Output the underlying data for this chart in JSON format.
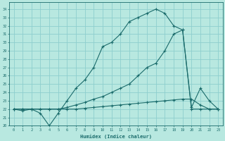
{
  "xlabel": "Humidex (Indice chaleur)",
  "bg_color": "#b8e8e0",
  "grid_color": "#8ecece",
  "line_color": "#1a6b6b",
  "xlim": [
    -0.5,
    23.5
  ],
  "ylim": [
    20,
    34.8
  ],
  "xticks": [
    0,
    1,
    2,
    3,
    4,
    5,
    6,
    7,
    8,
    9,
    10,
    11,
    12,
    13,
    14,
    15,
    16,
    17,
    18,
    19,
    20,
    21,
    22,
    23
  ],
  "yticks": [
    20,
    21,
    22,
    23,
    24,
    25,
    26,
    27,
    28,
    29,
    30,
    31,
    32,
    33,
    34
  ],
  "curve1_x": [
    0,
    1,
    2,
    3,
    4,
    5,
    6,
    7,
    8,
    9,
    10,
    11,
    12,
    13,
    14,
    15,
    16,
    17,
    18,
    19,
    20,
    21,
    22,
    23
  ],
  "curve1_y": [
    22.0,
    21.8,
    22.0,
    21.5,
    20.0,
    21.5,
    23.0,
    24.5,
    25.5,
    27.0,
    29.5,
    30.0,
    31.0,
    32.5,
    33.0,
    33.5,
    34.0,
    33.5,
    32.0,
    31.5,
    22.0,
    22.0,
    22.0,
    22.0
  ],
  "curve2_x": [
    0,
    1,
    2,
    3,
    4,
    5,
    6,
    7,
    8,
    9,
    10,
    11,
    12,
    13,
    14,
    15,
    16,
    17,
    18,
    19,
    20,
    21,
    22,
    23
  ],
  "curve2_y": [
    22.0,
    22.0,
    22.0,
    22.0,
    22.0,
    22.0,
    22.0,
    22.0,
    22.1,
    22.2,
    22.3,
    22.4,
    22.5,
    22.6,
    22.7,
    22.8,
    22.9,
    23.0,
    23.1,
    23.2,
    23.2,
    22.5,
    22.0,
    22.0
  ],
  "curve3_x": [
    0,
    1,
    2,
    3,
    4,
    5,
    6,
    7,
    8,
    9,
    10,
    11,
    12,
    13,
    14,
    15,
    16,
    17,
    18,
    19,
    20,
    21,
    22,
    23
  ],
  "curve3_y": [
    22.0,
    22.0,
    22.0,
    22.0,
    22.0,
    22.0,
    22.2,
    22.5,
    22.8,
    23.2,
    23.5,
    24.0,
    24.5,
    25.0,
    26.0,
    27.0,
    27.5,
    29.0,
    31.0,
    31.5,
    22.2,
    24.5,
    23.0,
    22.0
  ]
}
